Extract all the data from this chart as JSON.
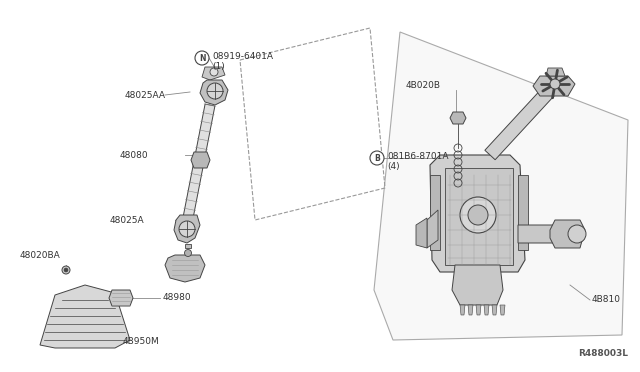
{
  "bg_color": "#ffffff",
  "line_color": "#444444",
  "label_color": "#333333",
  "gray_line": "#888888",
  "diagram_ref": "R488003L",
  "figsize": [
    6.4,
    3.72
  ],
  "dpi": 100,
  "labels": {
    "N_part": "08919-6401A\n(1)",
    "48025AA": "48025AA",
    "48080": "48080",
    "48025A": "48025A",
    "48020BA": "48020BA",
    "48980": "48980",
    "4B950M": "4B950M",
    "B_part": "081B6-8701A\n(4)",
    "4B020B": "4B020B",
    "4B810": "4B810"
  }
}
